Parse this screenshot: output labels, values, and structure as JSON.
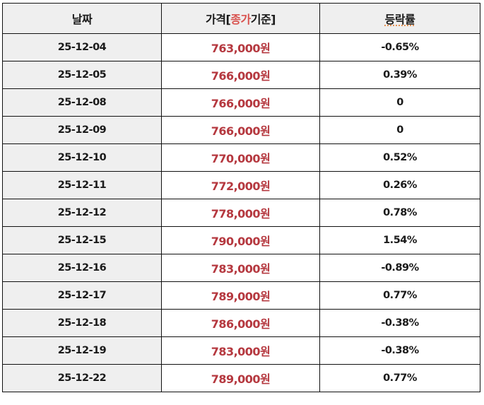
{
  "table": {
    "headers": {
      "date": "날짜",
      "price_prefix": "가격[",
      "price_highlight": "종가",
      "price_suffix": "기준]",
      "change": "등락률"
    },
    "colors": {
      "header_bg": "#efefef",
      "date_bg": "#efefef",
      "price_text": "#b5383f",
      "highlight_text": "#d9534f",
      "border": "#111111"
    },
    "rows": [
      {
        "date": "25-12-04",
        "price": "763,000원",
        "change": "-0.65%"
      },
      {
        "date": "25-12-05",
        "price": "766,000원",
        "change": "0.39%"
      },
      {
        "date": "25-12-08",
        "price": "766,000원",
        "change": "0"
      },
      {
        "date": "25-12-09",
        "price": "766,000원",
        "change": "0"
      },
      {
        "date": "25-12-10",
        "price": "770,000원",
        "change": "0.52%"
      },
      {
        "date": "25-12-11",
        "price": "772,000원",
        "change": "0.26%"
      },
      {
        "date": "25-12-12",
        "price": "778,000원",
        "change": "0.78%"
      },
      {
        "date": "25-12-15",
        "price": "790,000원",
        "change": "1.54%"
      },
      {
        "date": "25-12-16",
        "price": "783,000원",
        "change": "-0.89%"
      },
      {
        "date": "25-12-17",
        "price": "789,000원",
        "change": "0.77%"
      },
      {
        "date": "25-12-18",
        "price": "786,000원",
        "change": "-0.38%"
      },
      {
        "date": "25-12-19",
        "price": "783,000원",
        "change": "-0.38%"
      },
      {
        "date": "25-12-22",
        "price": "789,000원",
        "change": "0.77%"
      }
    ]
  }
}
